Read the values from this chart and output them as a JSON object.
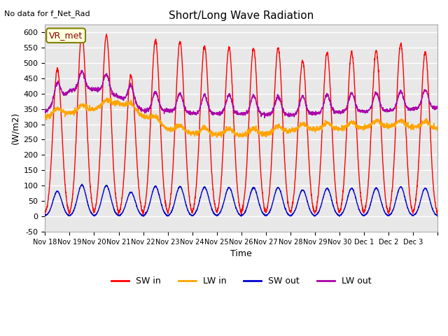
{
  "title": "Short/Long Wave Radiation",
  "no_data_text": "No data for f_Net_Rad",
  "vr_met_label": "VR_met",
  "xlabel": "Time",
  "ylabel": "(W/m2)",
  "ylim": [
    -50,
    625
  ],
  "yticks": [
    -50,
    0,
    50,
    100,
    150,
    200,
    250,
    300,
    350,
    400,
    450,
    500,
    550,
    600
  ],
  "background_color": "#ffffff",
  "plot_bg_color": "#e8e8e8",
  "grid_color": "#ffffff",
  "colors": {
    "SW_in": "#ff0000",
    "LW_in": "#ffa500",
    "SW_out": "#0000cc",
    "LW_out": "#aa00aa"
  },
  "n_days": 16,
  "tick_labels": [
    "Nov 18",
    "Nov 19",
    "Nov 20",
    "Nov 21",
    "Nov 22",
    "Nov 23",
    "Nov 24",
    "Nov 25",
    "Nov 26",
    "Nov 27",
    "Nov 28",
    "Nov 29",
    "Nov 30",
    "Dec 1",
    "Dec 2",
    "Dec 3",
    ""
  ],
  "sw_in_peaks": [
    480,
    600,
    590,
    460,
    575,
    570,
    555,
    550,
    547,
    550,
    507,
    533,
    535,
    540,
    563,
    535
  ],
  "lw_in_base": 310,
  "lw_out_base": 340,
  "sw_out_peak": 100
}
